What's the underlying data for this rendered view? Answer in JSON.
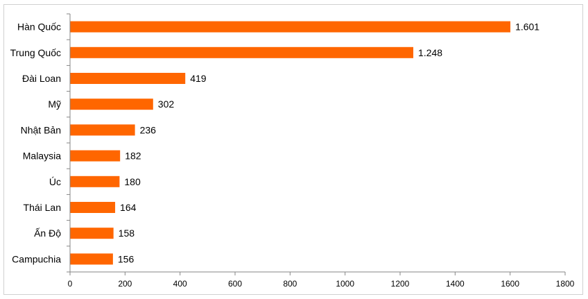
{
  "chart_data": {
    "type": "bar",
    "orientation": "horizontal",
    "categories": [
      "Hàn Quốc",
      "Trung Quốc",
      "Đài Loan",
      "Mỹ",
      "Nhật Bản",
      "Malaysia",
      "Úc",
      "Thái Lan",
      "Ấn Độ",
      "Campuchia"
    ],
    "values": [
      1601,
      1248,
      419,
      302,
      236,
      182,
      180,
      164,
      158,
      156
    ],
    "value_labels": [
      "1.601",
      "1.248",
      "419",
      "302",
      "236",
      "182",
      "180",
      "164",
      "158",
      "156"
    ],
    "title": "",
    "xlabel": "",
    "ylabel": "",
    "xlim": [
      0,
      1800
    ],
    "xticks": [
      0,
      200,
      400,
      600,
      800,
      1000,
      1200,
      1400,
      1600,
      1800
    ],
    "xtick_labels": [
      "0",
      "200",
      "400",
      "600",
      "800",
      "1000",
      "1200",
      "1400",
      "1600",
      "1800"
    ],
    "grid": false,
    "legend": "none",
    "bar_color": "#FF6600"
  }
}
